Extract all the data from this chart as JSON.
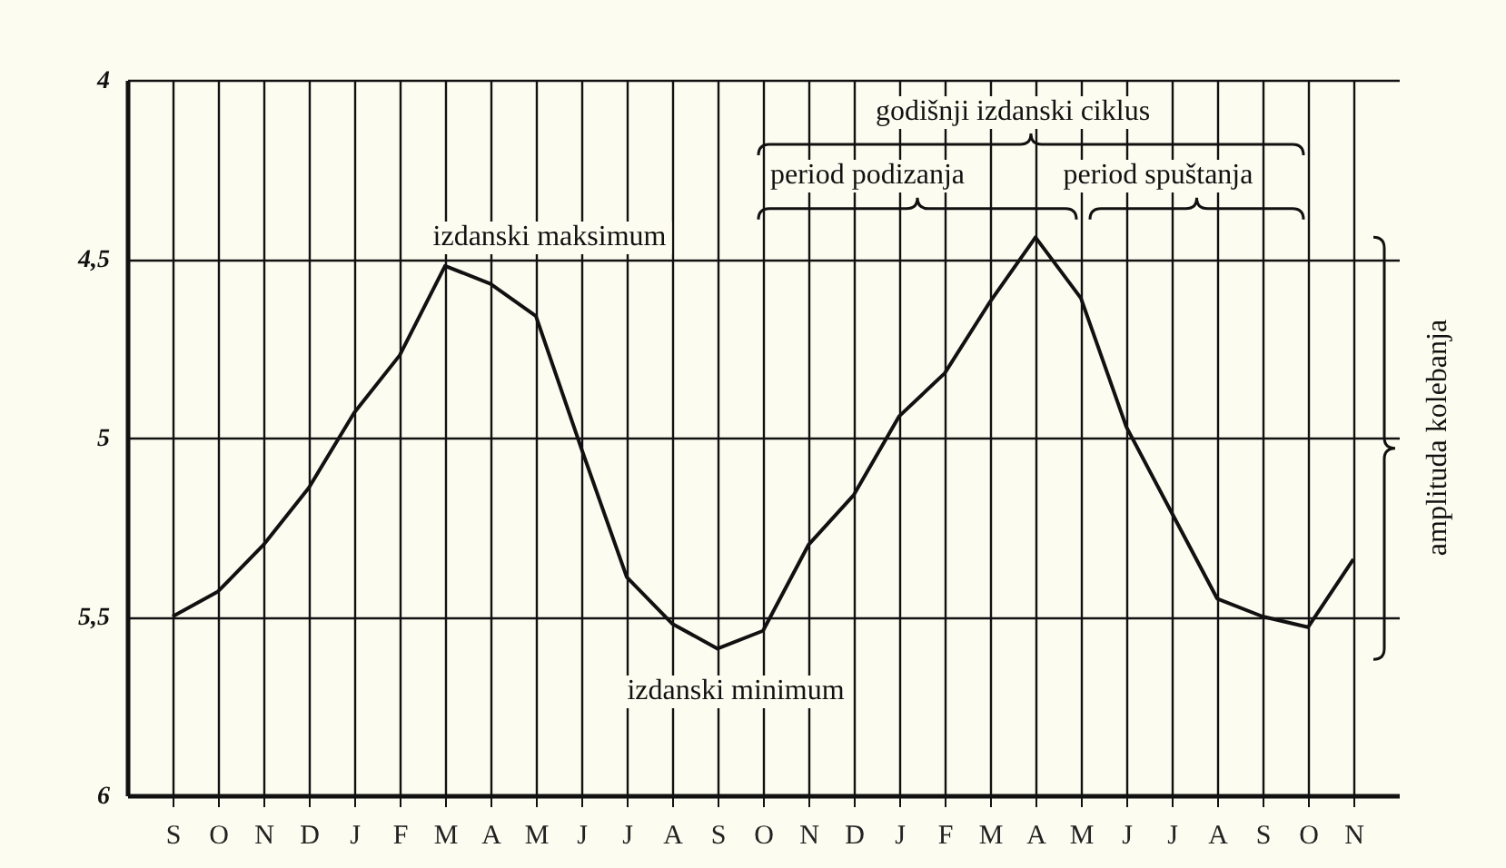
{
  "chart_data": {
    "type": "line",
    "categories": [
      "S",
      "O",
      "N",
      "D",
      "J",
      "F",
      "M",
      "A",
      "M",
      "J",
      "J",
      "A",
      "S",
      "O",
      "N",
      "D",
      "J",
      "F",
      "M",
      "A",
      "M",
      "J",
      "J",
      "A",
      "S",
      "O",
      "N"
    ],
    "series": [
      {
        "color": "#111111",
        "values": [
          5.5,
          5.43,
          5.3,
          5.14,
          4.93,
          4.77,
          4.52,
          4.57,
          4.66,
          5.03,
          5.39,
          5.52,
          5.59,
          5.54,
          5.3,
          5.16,
          4.94,
          4.82,
          4.62,
          4.44,
          4.61,
          4.97,
          5.21,
          5.45,
          5.5,
          5.53,
          5.34
        ]
      }
    ],
    "ylim": [
      6,
      4
    ],
    "yticks": [
      4,
      {
        "value": 4.5,
        "label": "4,5"
      },
      5,
      {
        "value": 5.5,
        "label": "5,5"
      },
      6
    ],
    "grid": true,
    "marker": "none",
    "line_style": "solid",
    "annotations": [
      "godišnji izdanski ciklus",
      "period podizanja",
      "period spuštanja",
      "izdanski maksimum",
      "izdanski minimum",
      "amplituda kolebanja"
    ]
  }
}
